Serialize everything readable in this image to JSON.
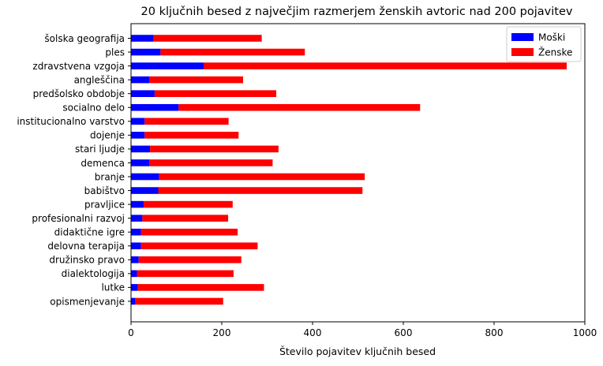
{
  "chart_data": {
    "type": "bar",
    "orientation": "horizontal",
    "stacked": true,
    "title": "20 ključnih besed z največjim razmerjem ženskih avtoric nad 200 pojavitev",
    "xlabel": "Število pojavitev ključnih besed",
    "ylabel": "",
    "xlim": [
      0,
      1000
    ],
    "xticks": [
      0,
      200,
      400,
      600,
      800,
      1000
    ],
    "grid": false,
    "legend_position": "top-right",
    "categories": [
      "šolska geografija",
      "ples",
      "zdravstvena vzgoja",
      "angleščina",
      "predšolsko obdobje",
      "socialno delo",
      "institucionalno varstvo",
      "dojenje",
      "stari ljudje",
      "demenca",
      "branje",
      "babištvo",
      "pravljice",
      "profesionalni razvoj",
      "didaktične igre",
      "delovna terapija",
      "družinsko pravo",
      "dialektologija",
      "lutke",
      "opismenjevanje"
    ],
    "series": [
      {
        "name": "Moški",
        "color": "#0000ff",
        "values": [
          50,
          65,
          160,
          40,
          52,
          105,
          30,
          30,
          42,
          40,
          62,
          60,
          28,
          25,
          22,
          22,
          17,
          13,
          15,
          10
        ]
      },
      {
        "name": "Ženske",
        "color": "#ff0000",
        "values": [
          238,
          318,
          800,
          207,
          268,
          532,
          185,
          207,
          283,
          272,
          453,
          450,
          196,
          189,
          213,
          257,
          226,
          213,
          278,
          193
        ]
      }
    ]
  }
}
